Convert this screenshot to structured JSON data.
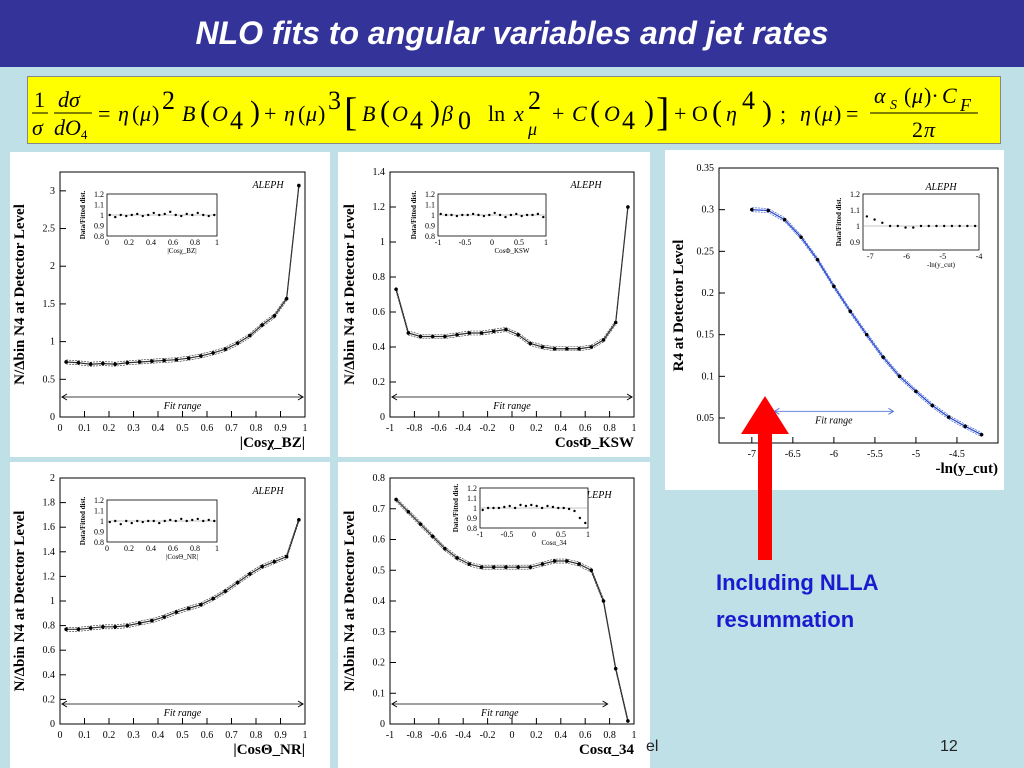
{
  "slide": {
    "title": "NLO fits to angular variables and jet rates",
    "callout_line1": "Including NLLA",
    "callout_line2": "resummation",
    "footer_left": "el",
    "page_number": "12"
  },
  "formula": {
    "text": "(1/σ)(dσ/dO4) = η(μ)² B(O4) + η(μ)³ [B(O4) β0 ln xμ² + C(O4)] + O(η⁴);  η(μ) = αS(μ)·CF / 2π"
  },
  "colors": {
    "title_bg": "#333399",
    "slide_bg": "#bfe0e6",
    "formula_bg": "#ffff00",
    "arrow": "#ff0000",
    "callout_text": "#1a1ad0",
    "fit_line": "#2244cc"
  },
  "chart_data": [
    {
      "id": "cos-chi-bz",
      "type": "line",
      "experiment_label": "ALEPH",
      "xlabel": "|Cosχ_BZ|",
      "ylabel": "N/Δbin N4 at Detector Level",
      "xlim": [
        0,
        1
      ],
      "ylim": [
        0,
        3.25
      ],
      "xticks": [
        "0",
        "0.1",
        "0.2",
        "0.3",
        "0.4",
        "0.5",
        "0.6",
        "0.7",
        "0.8",
        "0.9",
        "1"
      ],
      "yticks": [
        "0",
        "0.5",
        "1",
        "1.5",
        "2",
        "2.5",
        "3"
      ],
      "fit_range_label": "Fit range",
      "fit_range": [
        0,
        1
      ],
      "x": [
        0.025,
        0.075,
        0.125,
        0.175,
        0.225,
        0.275,
        0.325,
        0.375,
        0.425,
        0.475,
        0.525,
        0.575,
        0.625,
        0.675,
        0.725,
        0.775,
        0.825,
        0.875,
        0.925,
        0.975
      ],
      "series": [
        {
          "name": "Data",
          "values": [
            0.73,
            0.72,
            0.7,
            0.71,
            0.7,
            0.72,
            0.73,
            0.74,
            0.75,
            0.76,
            0.78,
            0.81,
            0.85,
            0.9,
            0.98,
            1.08,
            1.22,
            1.34,
            1.57,
            3.07
          ]
        }
      ],
      "inset": {
        "xlabel": "|Cosχ_BZ|",
        "ylabel": "Data/Fitted dist.",
        "xticks": [
          "0",
          "0.2",
          "0.4",
          "0.6",
          "0.8",
          "1"
        ],
        "yticks": [
          "0.8",
          "0.9",
          "1",
          "1.1",
          "1.2"
        ],
        "xlim": [
          0,
          1
        ],
        "ylim": [
          0.8,
          1.2
        ],
        "values": [
          1.0,
          0.98,
          1.0,
          0.99,
          1.0,
          1.01,
          0.99,
          1.0,
          1.02,
          1.0,
          1.01,
          1.03,
          1.0,
          0.99,
          1.01,
          1.0,
          1.02,
          1.0,
          0.99,
          1.0
        ]
      }
    },
    {
      "id": "cos-phi-ksw",
      "type": "line",
      "experiment_label": "ALEPH",
      "xlabel": "CosΦ_KSW",
      "ylabel": "N/Δbin N4 at Detector Level",
      "xlim": [
        -1,
        1
      ],
      "ylim": [
        0,
        1.4
      ],
      "xticks": [
        "-1",
        "-0.8",
        "-0.6",
        "-0.4",
        "-0.2",
        "0",
        "0.2",
        "0.4",
        "0.6",
        "0.8",
        "1"
      ],
      "yticks": [
        "0",
        "0.2",
        "0.4",
        "0.6",
        "0.8",
        "1",
        "1.2",
        "1.4"
      ],
      "fit_range_label": "Fit range",
      "fit_range": [
        -1,
        1
      ],
      "x": [
        -0.95,
        -0.85,
        -0.75,
        -0.65,
        -0.55,
        -0.45,
        -0.35,
        -0.25,
        -0.15,
        -0.05,
        0.05,
        0.15,
        0.25,
        0.35,
        0.45,
        0.55,
        0.65,
        0.75,
        0.85,
        0.95
      ],
      "series": [
        {
          "name": "Data",
          "values": [
            0.73,
            0.48,
            0.46,
            0.46,
            0.46,
            0.47,
            0.48,
            0.48,
            0.49,
            0.5,
            0.47,
            0.42,
            0.4,
            0.39,
            0.39,
            0.39,
            0.4,
            0.44,
            0.54,
            1.2
          ]
        }
      ],
      "inset": {
        "xlabel": "CosΦ_KSW",
        "ylabel": "Data/Fitted dist.",
        "xticks": [
          "-1",
          "-0.5",
          "0",
          "0.5",
          "1"
        ],
        "yticks": [
          "0.8",
          "0.9",
          "1",
          "1.1",
          "1.2"
        ],
        "xlim": [
          -1,
          1
        ],
        "ylim": [
          0.8,
          1.2
        ],
        "values": [
          1.01,
          1.0,
          1.0,
          0.99,
          1.0,
          1.0,
          1.01,
          1.0,
          0.99,
          1.0,
          1.02,
          1.0,
          0.98,
          1.0,
          1.01,
          0.99,
          1.0,
          1.0,
          1.01,
          0.98
        ]
      }
    },
    {
      "id": "cos-theta-nr",
      "type": "line",
      "experiment_label": "ALEPH",
      "xlabel": "|CosΘ_NR|",
      "ylabel": "N/Δbin N4 at Detector Level",
      "xlim": [
        0,
        1
      ],
      "ylim": [
        0,
        2
      ],
      "xticks": [
        "0",
        "0.1",
        "0.2",
        "0.3",
        "0.4",
        "0.5",
        "0.6",
        "0.7",
        "0.8",
        "0.9",
        "1"
      ],
      "yticks": [
        "0",
        "0.2",
        "0.4",
        "0.6",
        "0.8",
        "1",
        "1.2",
        "1.4",
        "1.6",
        "1.8",
        "2"
      ],
      "fit_range_label": "Fit range",
      "fit_range": [
        0,
        1
      ],
      "x": [
        0.025,
        0.075,
        0.125,
        0.175,
        0.225,
        0.275,
        0.325,
        0.375,
        0.425,
        0.475,
        0.525,
        0.575,
        0.625,
        0.675,
        0.725,
        0.775,
        0.825,
        0.875,
        0.925,
        0.975
      ],
      "series": [
        {
          "name": "Data",
          "values": [
            0.77,
            0.77,
            0.78,
            0.79,
            0.79,
            0.8,
            0.82,
            0.84,
            0.87,
            0.91,
            0.94,
            0.97,
            1.02,
            1.08,
            1.15,
            1.22,
            1.28,
            1.32,
            1.36,
            1.66
          ]
        }
      ],
      "inset": {
        "xlabel": "|CosΘ_NR|",
        "ylabel": "Data/Fitted dist.",
        "xticks": [
          "0",
          "0.2",
          "0.4",
          "0.6",
          "0.8",
          "1"
        ],
        "yticks": [
          "0.8",
          "0.9",
          "1",
          "1.1",
          "1.2"
        ],
        "xlim": [
          0,
          1
        ],
        "ylim": [
          0.8,
          1.2
        ],
        "values": [
          0.99,
          1.0,
          0.97,
          1.0,
          0.98,
          1.0,
          0.99,
          1.0,
          1.0,
          0.98,
          1.0,
          1.01,
          1.0,
          1.02,
          1.0,
          1.01,
          1.02,
          1.0,
          1.01,
          1.0
        ]
      }
    },
    {
      "id": "cos-alpha-34",
      "type": "line",
      "experiment_label": "ALEPH",
      "xlabel": "Cosα_34",
      "ylabel": "N/Δbin N4 at Detector Level",
      "xlim": [
        -1,
        1
      ],
      "ylim": [
        0,
        0.8
      ],
      "xticks": [
        "-1",
        "-0.8",
        "-0.6",
        "-0.4",
        "-0.2",
        "0",
        "0.2",
        "0.4",
        "0.6",
        "0.8",
        "1"
      ],
      "yticks": [
        "0",
        "0.1",
        "0.2",
        "0.3",
        "0.4",
        "0.5",
        "0.6",
        "0.7",
        "0.8"
      ],
      "fit_range_label": "Fit range",
      "fit_range": [
        -1,
        0.8
      ],
      "x": [
        -0.95,
        -0.85,
        -0.75,
        -0.65,
        -0.55,
        -0.45,
        -0.35,
        -0.25,
        -0.15,
        -0.05,
        0.05,
        0.15,
        0.25,
        0.35,
        0.45,
        0.55,
        0.65,
        0.75,
        0.85,
        0.95
      ],
      "series": [
        {
          "name": "Data",
          "values": [
            0.73,
            0.69,
            0.65,
            0.61,
            0.57,
            0.54,
            0.52,
            0.51,
            0.51,
            0.51,
            0.51,
            0.51,
            0.52,
            0.53,
            0.53,
            0.52,
            0.5,
            0.4,
            0.18,
            0.01
          ]
        }
      ],
      "inset": {
        "xlabel": "Cosα_34",
        "ylabel": "Data/Fitted dist.",
        "xticks": [
          "-1",
          "-0.5",
          "0",
          "0.5",
          "1"
        ],
        "yticks": [
          "0.8",
          "0.9",
          "1",
          "1.1",
          "1.2"
        ],
        "xlim": [
          -1,
          1
        ],
        "ylim": [
          0.8,
          1.2
        ],
        "values": [
          0.98,
          1.0,
          1.0,
          1.0,
          1.01,
          1.02,
          1.0,
          1.03,
          1.02,
          1.03,
          1.02,
          1.0,
          1.02,
          1.01,
          1.0,
          1.0,
          0.99,
          0.97,
          0.9,
          0.85
        ]
      }
    },
    {
      "id": "r4-jet-rate",
      "type": "line",
      "experiment_label": "ALEPH",
      "xlabel": "-ln(y_cut)",
      "ylabel": "R4 at Detector Level",
      "xlim": [
        -7.4,
        -4.0
      ],
      "ylim": [
        0.02,
        0.35
      ],
      "xticks": [
        "-7",
        "-6.5",
        "-6",
        "-5.5",
        "-5",
        "-4.5"
      ],
      "yticks": [
        "0.05",
        "0.1",
        "0.15",
        "0.2",
        "0.25",
        "0.3",
        "0.35"
      ],
      "fit_range_label": "Fit range",
      "fit_range": [
        -6.75,
        -5.25
      ],
      "x": [
        -7.0,
        -6.8,
        -6.6,
        -6.4,
        -6.2,
        -6.0,
        -5.8,
        -5.6,
        -5.4,
        -5.2,
        -5.0,
        -4.8,
        -4.6,
        -4.4,
        -4.2
      ],
      "series": [
        {
          "name": "Data",
          "values": [
            0.3,
            0.299,
            0.288,
            0.267,
            0.24,
            0.208,
            0.178,
            0.15,
            0.123,
            0.1,
            0.082,
            0.065,
            0.051,
            0.04,
            0.03
          ]
        }
      ],
      "inset": {
        "xlabel": "-ln(y_cut)",
        "ylabel": "Data/Fitted dist.",
        "xticks": [
          "-7",
          "-6",
          "-5",
          "-4"
        ],
        "yticks": [
          "0.9",
          "1",
          "1.1",
          "1.2"
        ],
        "xlim": [
          -7.2,
          -4.0
        ],
        "ylim": [
          0.85,
          1.2
        ],
        "values": [
          1.06,
          1.04,
          1.02,
          1.0,
          1.0,
          0.99,
          0.99,
          1.0,
          1.0,
          1.0,
          1.0,
          1.0,
          1.0,
          1.0,
          1.0
        ]
      }
    }
  ]
}
